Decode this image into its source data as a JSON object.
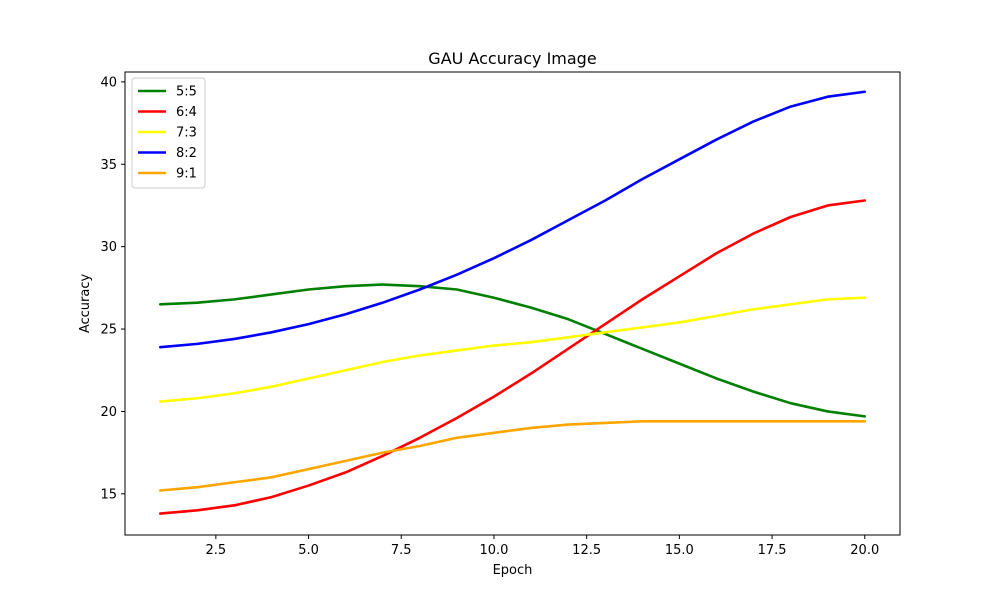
{
  "chart_data": {
    "type": "line",
    "title": "GAU Accuracy Image",
    "xlabel": "Epoch",
    "ylabel": "Accuracy",
    "xlim": [
      0.05,
      20.95
    ],
    "ylim": [
      12.5,
      40.6
    ],
    "xticks": [
      2.5,
      5.0,
      7.5,
      10.0,
      12.5,
      15.0,
      17.5,
      20.0
    ],
    "xtick_labels": [
      "2.5",
      "5.0",
      "7.5",
      "10.0",
      "12.5",
      "15.0",
      "17.5",
      "20.0"
    ],
    "yticks": [
      15,
      20,
      25,
      30,
      35,
      40
    ],
    "ytick_labels": [
      "15",
      "20",
      "25",
      "30",
      "35",
      "40"
    ],
    "grid": false,
    "legend_position": "top-left",
    "x": [
      1,
      2,
      3,
      4,
      5,
      6,
      7,
      8,
      9,
      10,
      11,
      12,
      13,
      14,
      15,
      16,
      17,
      18,
      19,
      20
    ],
    "series": [
      {
        "name": "5:5",
        "color": "#008000",
        "values": [
          26.5,
          26.6,
          26.8,
          27.1,
          27.4,
          27.6,
          27.7,
          27.6,
          27.4,
          26.9,
          26.3,
          25.6,
          24.7,
          23.8,
          22.9,
          22.0,
          21.2,
          20.5,
          20.0,
          19.7
        ]
      },
      {
        "name": "6:4",
        "color": "#ff0000",
        "values": [
          13.8,
          14.0,
          14.3,
          14.8,
          15.5,
          16.3,
          17.3,
          18.4,
          19.6,
          20.9,
          22.3,
          23.8,
          25.3,
          26.8,
          28.2,
          29.6,
          30.8,
          31.8,
          32.5,
          32.8
        ]
      },
      {
        "name": "7:3",
        "color": "#ffff00",
        "values": [
          20.6,
          20.8,
          21.1,
          21.5,
          22.0,
          22.5,
          23.0,
          23.4,
          23.7,
          24.0,
          24.2,
          24.5,
          24.8,
          25.1,
          25.4,
          25.8,
          26.2,
          26.5,
          26.8,
          26.9
        ]
      },
      {
        "name": "8:2",
        "color": "#0000ff",
        "values": [
          23.9,
          24.1,
          24.4,
          24.8,
          25.3,
          25.9,
          26.6,
          27.4,
          28.3,
          29.3,
          30.4,
          31.6,
          32.8,
          34.1,
          35.3,
          36.5,
          37.6,
          38.5,
          39.1,
          39.4
        ]
      },
      {
        "name": "9:1",
        "color": "#ffa500",
        "values": [
          15.2,
          15.4,
          15.7,
          16.0,
          16.5,
          17.0,
          17.5,
          17.9,
          18.4,
          18.7,
          19.0,
          19.2,
          19.3,
          19.4,
          19.4,
          19.4,
          19.4,
          19.4,
          19.4,
          19.4
        ]
      }
    ]
  }
}
